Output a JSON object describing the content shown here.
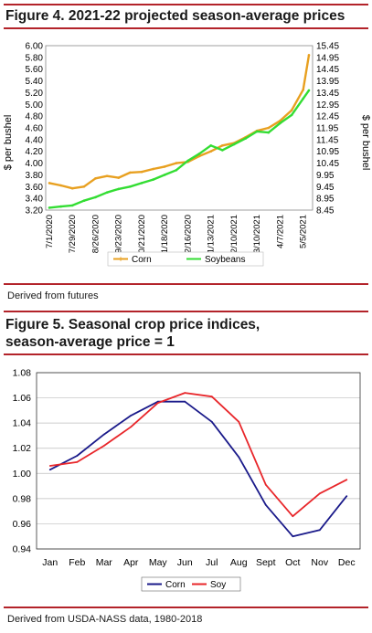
{
  "figure4": {
    "title": "Figure 4. 2021-22 projected season-average prices",
    "source": "Derived from futures"
  },
  "figure5": {
    "title_line1": "Figure 5. Seasonal crop price indices,",
    "title_line2": "season-average price = 1",
    "source": "Derived from USDA-NASS data, 1980-2018"
  },
  "colors": {
    "rule": "#b3232a",
    "corn_fig4": "#e8a020",
    "soy_fig4": "#33dd33",
    "corn_fig5": "#1a1a8a",
    "soy_fig5": "#e8262a"
  },
  "chart_data": [
    {
      "type": "line",
      "ylabel": "$ per bushel",
      "y2label": "$ per bushel",
      "ylim": [
        3.2,
        6.0
      ],
      "y2lim": [
        8.45,
        15.45
      ],
      "yticks": [
        "6.00",
        "5.80",
        "5.60",
        "5.40",
        "5.20",
        "5.00",
        "4.80",
        "4.60",
        "4.40",
        "4.20",
        "4.00",
        "3.80",
        "3.60",
        "3.40",
        "3.20"
      ],
      "y2ticks": [
        "15.45",
        "14.95",
        "14.45",
        "13.95",
        "13.45",
        "12.95",
        "12.45",
        "11.95",
        "11.45",
        "10.95",
        "10.45",
        "9.95",
        "9.45",
        "8.95",
        "8.45"
      ],
      "xticks": [
        "7/1/2020",
        "7/29/2020",
        "8/26/2020",
        "9/23/2020",
        "10/21/2020",
        "11/18/2020",
        "12/16/2020",
        "1/13/2021",
        "2/10/2021",
        "3/10/2021",
        "4/7/2021",
        "5/5/2021"
      ],
      "legend": "bottom",
      "grid": false,
      "series": [
        {
          "name": "Corn",
          "axis": "left",
          "x": [
            "7/1/2020",
            "7/15/2020",
            "7/29/2020",
            "8/12/2020",
            "8/26/2020",
            "9/9/2020",
            "9/23/2020",
            "10/7/2020",
            "10/21/2020",
            "11/4/2020",
            "11/18/2020",
            "12/2/2020",
            "12/16/2020",
            "12/30/2020",
            "1/13/2021",
            "1/27/2021",
            "2/10/2021",
            "2/24/2021",
            "3/10/2021",
            "3/24/2021",
            "4/7/2021",
            "4/21/2021",
            "5/5/2021",
            "5/12/2021"
          ],
          "values": [
            3.66,
            3.62,
            3.57,
            3.6,
            3.74,
            3.78,
            3.75,
            3.84,
            3.85,
            3.9,
            3.94,
            4.0,
            4.02,
            4.12,
            4.2,
            4.3,
            4.34,
            4.44,
            4.55,
            4.6,
            4.72,
            4.9,
            5.25,
            5.84
          ]
        },
        {
          "name": "Soybeans",
          "axis": "right",
          "x": [
            "7/1/2020",
            "7/15/2020",
            "7/29/2020",
            "8/12/2020",
            "8/26/2020",
            "9/9/2020",
            "9/23/2020",
            "10/7/2020",
            "10/21/2020",
            "11/4/2020",
            "11/18/2020",
            "12/2/2020",
            "12/16/2020",
            "12/30/2020",
            "1/13/2021",
            "1/27/2021",
            "2/10/2021",
            "2/24/2021",
            "3/10/2021",
            "3/24/2021",
            "4/7/2021",
            "4/21/2021",
            "5/5/2021",
            "5/12/2021"
          ],
          "values": [
            8.55,
            8.6,
            8.65,
            8.85,
            9.0,
            9.2,
            9.35,
            9.45,
            9.6,
            9.75,
            9.95,
            10.15,
            10.55,
            10.85,
            11.2,
            11.0,
            11.25,
            11.5,
            11.8,
            11.75,
            12.15,
            12.5,
            13.2,
            13.55
          ]
        }
      ]
    },
    {
      "type": "line",
      "categories": [
        "Jan",
        "Feb",
        "Mar",
        "Apr",
        "May",
        "Jun",
        "Jul",
        "Aug",
        "Sept",
        "Oct",
        "Nov",
        "Dec"
      ],
      "ylim": [
        0.94,
        1.08
      ],
      "yticks": [
        "1.08",
        "1.06",
        "1.04",
        "1.02",
        "1.00",
        "0.98",
        "0.96",
        "0.94"
      ],
      "grid": true,
      "legend": "bottom",
      "series": [
        {
          "name": "Corn",
          "values": [
            1.003,
            1.014,
            1.031,
            1.046,
            1.057,
            1.057,
            1.041,
            1.013,
            0.975,
            0.95,
            0.955,
            0.982
          ]
        },
        {
          "name": "Soy",
          "values": [
            1.006,
            1.009,
            1.022,
            1.037,
            1.056,
            1.064,
            1.061,
            1.041,
            0.991,
            0.966,
            0.984,
            0.995
          ]
        }
      ]
    }
  ]
}
